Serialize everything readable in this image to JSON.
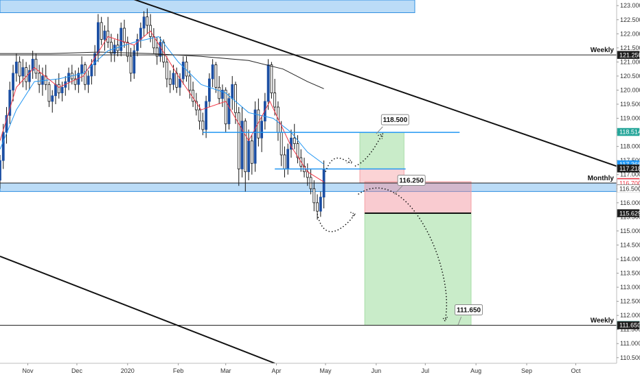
{
  "chart_data": {
    "type": "candlestick",
    "title": "",
    "xlabel": "",
    "ylabel": "",
    "ylim": [
      110.3,
      123.2
    ],
    "grid": false,
    "legend": "none",
    "y_ticks": [
      110.5,
      111.0,
      111.5,
      112.0,
      112.5,
      113.0,
      113.5,
      114.0,
      114.5,
      115.0,
      115.5,
      116.0,
      116.5,
      117.0,
      117.5,
      118.0,
      118.5,
      119.0,
      119.5,
      120.0,
      120.5,
      121.0,
      121.5,
      122.0,
      122.5,
      123.0
    ],
    "y_tick_labels": [
      "110.500",
      "111.000",
      "111.500",
      "112.000",
      "112.500",
      "113.000",
      "113.500",
      "114.000",
      "114.500",
      "115.000",
      "115.500",
      "116.000",
      "116.500",
      "117.000",
      "117.500",
      "118.000",
      "118.500",
      "119.000",
      "119.500",
      "120.000",
      "120.500",
      "121.000",
      "121.500",
      "122.000",
      "122.500",
      "123.000"
    ],
    "x_ticks": [
      {
        "label": "Nov",
        "date": "2019-11-01"
      },
      {
        "label": "Dec",
        "date": "2019-12-01"
      },
      {
        "label": "2020",
        "date": "2020-01-01"
      },
      {
        "label": "Feb",
        "date": "2020-02-01"
      },
      {
        "label": "Mar",
        "date": "2020-03-01"
      },
      {
        "label": "Apr",
        "date": "2020-04-01"
      },
      {
        "label": "May",
        "date": "2020-05-01"
      },
      {
        "label": "Jun",
        "date": "2020-06-01"
      },
      {
        "label": "Jul",
        "date": "2020-07-01"
      },
      {
        "label": "Aug",
        "date": "2020-08-01"
      },
      {
        "label": "Sep",
        "date": "2020-09-01"
      },
      {
        "label": "Oct",
        "date": "2020-10-01"
      }
    ],
    "x_range": [
      "2019-10-15",
      "2020-10-26"
    ],
    "price_tags": [
      {
        "value": 121.25,
        "label": "121.250",
        "bg": "#1e1e1e",
        "fg": "#ffffff"
      },
      {
        "value": 118.514,
        "label": "118.514",
        "bg": "#26a69a",
        "fg": "#ffffff"
      },
      {
        "value": 117.369,
        "label": "117.369",
        "bg": "#2196f3",
        "fg": "#ffffff"
      },
      {
        "value": 117.218,
        "label": "117.218",
        "bg": "#1e1e1e",
        "fg": "#ffffff"
      },
      {
        "value": 116.736,
        "label": "116.736",
        "bg": "#f23645",
        "fg": "#ffffff"
      },
      {
        "value": 116.7,
        "label": "116.700",
        "bg": "#ffffff",
        "fg": "#f23645"
      },
      {
        "value": 116.509,
        "label": "116.509",
        "bg": "#1e1e1e",
        "fg": "#ffffff"
      },
      {
        "value": 116.5,
        "label": "116.500",
        "bg": "#ffffff",
        "fg": "#333333"
      },
      {
        "value": 115.629,
        "label": "115.629",
        "bg": "#1e1e1e",
        "fg": "#ffffff"
      },
      {
        "value": 111.659,
        "label": "111.659",
        "bg": "#26a69a",
        "fg": "#ffffff"
      },
      {
        "value": 111.65,
        "label": "111.650",
        "bg": "#1e1e1e",
        "fg": "#ffffff"
      }
    ],
    "levels": [
      {
        "value": 121.25,
        "label": "Weekly"
      },
      {
        "value": 116.7,
        "label": "Monthly"
      },
      {
        "value": 111.65,
        "label": "Weekly"
      }
    ],
    "callouts": [
      {
        "value": "118.500",
        "date": "2020-06-05",
        "price": 118.95
      },
      {
        "value": "116.250",
        "date": "2020-06-15",
        "price": 116.8
      },
      {
        "value": "111.650",
        "date": "2020-07-20",
        "price": 112.2
      }
    ],
    "candles": [
      {
        "date": "2019-10-15",
        "o": 116.8,
        "h": 117.7,
        "l": 116.5,
        "c": 117.5
      },
      {
        "date": "2019-10-17",
        "o": 117.5,
        "h": 118.8,
        "l": 117.2,
        "c": 118.5
      },
      {
        "date": "2019-10-19",
        "o": 118.5,
        "h": 119.4,
        "l": 118.1,
        "c": 119.1
      },
      {
        "date": "2019-10-21",
        "o": 119.1,
        "h": 120.3,
        "l": 118.8,
        "c": 120.0
      },
      {
        "date": "2019-10-23",
        "o": 120.0,
        "h": 120.9,
        "l": 119.6,
        "c": 120.6
      },
      {
        "date": "2019-10-25",
        "o": 120.6,
        "h": 121.3,
        "l": 120.3,
        "c": 121.0
      },
      {
        "date": "2019-10-27",
        "o": 121.0,
        "h": 121.2,
        "l": 120.2,
        "c": 120.5
      },
      {
        "date": "2019-10-29",
        "o": 120.5,
        "h": 121.1,
        "l": 120.1,
        "c": 120.8
      },
      {
        "date": "2019-10-31",
        "o": 120.8,
        "h": 121.0,
        "l": 120.0,
        "c": 120.3
      },
      {
        "date": "2019-11-02",
        "o": 120.3,
        "h": 120.9,
        "l": 120.0,
        "c": 120.7
      },
      {
        "date": "2019-11-04",
        "o": 120.7,
        "h": 121.4,
        "l": 120.4,
        "c": 121.1
      },
      {
        "date": "2019-11-06",
        "o": 121.1,
        "h": 121.3,
        "l": 120.4,
        "c": 120.6
      },
      {
        "date": "2019-11-08",
        "o": 120.6,
        "h": 120.9,
        "l": 119.9,
        "c": 120.2
      },
      {
        "date": "2019-11-10",
        "o": 120.2,
        "h": 120.8,
        "l": 119.8,
        "c": 120.5
      },
      {
        "date": "2019-11-12",
        "o": 120.5,
        "h": 120.9,
        "l": 120.0,
        "c": 120.2
      },
      {
        "date": "2019-11-14",
        "o": 120.2,
        "h": 120.3,
        "l": 119.4,
        "c": 119.6
      },
      {
        "date": "2019-11-16",
        "o": 119.6,
        "h": 120.0,
        "l": 119.2,
        "c": 119.8
      },
      {
        "date": "2019-11-18",
        "o": 119.8,
        "h": 120.4,
        "l": 119.5,
        "c": 120.2
      },
      {
        "date": "2019-11-20",
        "o": 120.2,
        "h": 120.6,
        "l": 119.7,
        "c": 119.9
      },
      {
        "date": "2019-11-22",
        "o": 119.9,
        "h": 120.3,
        "l": 119.6,
        "c": 120.1
      },
      {
        "date": "2019-11-24",
        "o": 120.1,
        "h": 120.5,
        "l": 119.8,
        "c": 120.3
      },
      {
        "date": "2019-11-26",
        "o": 120.3,
        "h": 120.8,
        "l": 120.0,
        "c": 120.6
      },
      {
        "date": "2019-11-28",
        "o": 120.6,
        "h": 120.9,
        "l": 120.2,
        "c": 120.4
      },
      {
        "date": "2019-11-30",
        "o": 120.4,
        "h": 120.7,
        "l": 120.0,
        "c": 120.2
      },
      {
        "date": "2019-12-02",
        "o": 120.2,
        "h": 120.8,
        "l": 119.9,
        "c": 120.6
      },
      {
        "date": "2019-12-04",
        "o": 120.6,
        "h": 121.2,
        "l": 120.3,
        "c": 120.9
      },
      {
        "date": "2019-12-06",
        "o": 120.9,
        "h": 121.0,
        "l": 120.0,
        "c": 120.2
      },
      {
        "date": "2019-12-08",
        "o": 120.2,
        "h": 120.7,
        "l": 119.9,
        "c": 120.5
      },
      {
        "date": "2019-12-10",
        "o": 120.5,
        "h": 121.1,
        "l": 120.2,
        "c": 120.9
      },
      {
        "date": "2019-12-12",
        "o": 120.9,
        "h": 121.6,
        "l": 120.5,
        "c": 121.3
      },
      {
        "date": "2019-12-14",
        "o": 121.3,
        "h": 122.7,
        "l": 121.0,
        "c": 122.4
      },
      {
        "date": "2019-12-16",
        "o": 122.4,
        "h": 122.6,
        "l": 121.6,
        "c": 121.8
      },
      {
        "date": "2019-12-18",
        "o": 121.8,
        "h": 122.3,
        "l": 121.4,
        "c": 122.1
      },
      {
        "date": "2019-12-20",
        "o": 122.1,
        "h": 122.6,
        "l": 121.5,
        "c": 121.7
      },
      {
        "date": "2019-12-22",
        "o": 121.7,
        "h": 122.0,
        "l": 121.0,
        "c": 121.3
      },
      {
        "date": "2019-12-24",
        "o": 121.3,
        "h": 121.8,
        "l": 121.0,
        "c": 121.6
      },
      {
        "date": "2019-12-26",
        "o": 121.6,
        "h": 122.0,
        "l": 121.2,
        "c": 121.4
      },
      {
        "date": "2019-12-28",
        "o": 121.4,
        "h": 122.4,
        "l": 121.2,
        "c": 122.2
      },
      {
        "date": "2019-12-30",
        "o": 122.2,
        "h": 122.5,
        "l": 121.5,
        "c": 121.7
      },
      {
        "date": "2020-01-01",
        "o": 121.7,
        "h": 121.9,
        "l": 121.0,
        "c": 121.2
      },
      {
        "date": "2020-01-03",
        "o": 121.2,
        "h": 121.5,
        "l": 120.3,
        "c": 120.6
      },
      {
        "date": "2020-01-05",
        "o": 120.6,
        "h": 121.6,
        "l": 120.4,
        "c": 121.4
      },
      {
        "date": "2020-01-07",
        "o": 121.4,
        "h": 122.0,
        "l": 121.2,
        "c": 121.8
      },
      {
        "date": "2020-01-09",
        "o": 121.8,
        "h": 122.4,
        "l": 121.5,
        "c": 122.2
      },
      {
        "date": "2020-01-11",
        "o": 122.2,
        "h": 122.8,
        "l": 121.9,
        "c": 122.6
      },
      {
        "date": "2020-01-13",
        "o": 122.6,
        "h": 122.9,
        "l": 122.0,
        "c": 122.3
      },
      {
        "date": "2020-01-15",
        "o": 122.3,
        "h": 122.7,
        "l": 121.7,
        "c": 121.9
      },
      {
        "date": "2020-01-17",
        "o": 121.9,
        "h": 122.2,
        "l": 121.3,
        "c": 121.5
      },
      {
        "date": "2020-01-19",
        "o": 121.5,
        "h": 121.9,
        "l": 120.9,
        "c": 121.2
      },
      {
        "date": "2020-01-21",
        "o": 121.2,
        "h": 121.9,
        "l": 121.0,
        "c": 121.7
      },
      {
        "date": "2020-01-23",
        "o": 121.7,
        "h": 121.8,
        "l": 120.8,
        "c": 121.0
      },
      {
        "date": "2020-01-25",
        "o": 121.0,
        "h": 121.2,
        "l": 120.1,
        "c": 120.4
      },
      {
        "date": "2020-01-27",
        "o": 120.4,
        "h": 120.7,
        "l": 119.9,
        "c": 120.2
      },
      {
        "date": "2020-01-29",
        "o": 120.2,
        "h": 120.9,
        "l": 120.0,
        "c": 120.6
      },
      {
        "date": "2020-01-31",
        "o": 120.6,
        "h": 120.8,
        "l": 119.9,
        "c": 120.1
      },
      {
        "date": "2020-02-02",
        "o": 120.1,
        "h": 120.6,
        "l": 119.8,
        "c": 120.4
      },
      {
        "date": "2020-02-04",
        "o": 120.4,
        "h": 121.2,
        "l": 120.2,
        "c": 121.0
      },
      {
        "date": "2020-02-06",
        "o": 121.0,
        "h": 121.2,
        "l": 120.3,
        "c": 120.5
      },
      {
        "date": "2020-02-08",
        "o": 120.5,
        "h": 120.7,
        "l": 119.7,
        "c": 120.0
      },
      {
        "date": "2020-02-10",
        "o": 120.0,
        "h": 120.3,
        "l": 119.4,
        "c": 119.6
      },
      {
        "date": "2020-02-12",
        "o": 119.6,
        "h": 119.9,
        "l": 119.1,
        "c": 119.3
      },
      {
        "date": "2020-02-14",
        "o": 119.3,
        "h": 119.5,
        "l": 118.6,
        "c": 118.9
      },
      {
        "date": "2020-02-16",
        "o": 118.9,
        "h": 119.2,
        "l": 118.4,
        "c": 118.6
      },
      {
        "date": "2020-02-18",
        "o": 118.6,
        "h": 119.8,
        "l": 118.3,
        "c": 119.6
      },
      {
        "date": "2020-02-20",
        "o": 119.6,
        "h": 120.6,
        "l": 119.4,
        "c": 120.4
      },
      {
        "date": "2020-02-22",
        "o": 120.4,
        "h": 121.1,
        "l": 120.1,
        "c": 120.9
      },
      {
        "date": "2020-02-24",
        "o": 120.9,
        "h": 121.0,
        "l": 119.9,
        "c": 120.1
      },
      {
        "date": "2020-02-26",
        "o": 120.1,
        "h": 120.5,
        "l": 119.5,
        "c": 119.7
      },
      {
        "date": "2020-02-28",
        "o": 119.7,
        "h": 120.2,
        "l": 119.4,
        "c": 120.0
      },
      {
        "date": "2020-03-01",
        "o": 120.0,
        "h": 120.1,
        "l": 118.5,
        "c": 118.8
      },
      {
        "date": "2020-03-03",
        "o": 118.8,
        "h": 119.9,
        "l": 118.6,
        "c": 119.7
      },
      {
        "date": "2020-03-05",
        "o": 119.7,
        "h": 120.5,
        "l": 119.3,
        "c": 120.2
      },
      {
        "date": "2020-03-07",
        "o": 120.2,
        "h": 120.3,
        "l": 118.8,
        "c": 119.2
      },
      {
        "date": "2020-03-09",
        "o": 119.2,
        "h": 119.4,
        "l": 116.6,
        "c": 117.2
      },
      {
        "date": "2020-03-11",
        "o": 117.2,
        "h": 119.4,
        "l": 116.9,
        "c": 118.9
      },
      {
        "date": "2020-03-13",
        "o": 118.9,
        "h": 119.0,
        "l": 116.4,
        "c": 117.1
      },
      {
        "date": "2020-03-15",
        "o": 117.1,
        "h": 118.6,
        "l": 116.8,
        "c": 118.2
      },
      {
        "date": "2020-03-17",
        "o": 118.2,
        "h": 118.4,
        "l": 117.0,
        "c": 117.4
      },
      {
        "date": "2020-03-19",
        "o": 117.4,
        "h": 119.6,
        "l": 117.1,
        "c": 119.3
      },
      {
        "date": "2020-03-21",
        "o": 119.3,
        "h": 119.7,
        "l": 118.0,
        "c": 118.3
      },
      {
        "date": "2020-03-23",
        "o": 118.3,
        "h": 119.1,
        "l": 117.8,
        "c": 118.9
      },
      {
        "date": "2020-03-25",
        "o": 118.9,
        "h": 119.9,
        "l": 118.6,
        "c": 119.6
      },
      {
        "date": "2020-03-27",
        "o": 119.6,
        "h": 121.1,
        "l": 119.3,
        "c": 120.9
      },
      {
        "date": "2020-03-29",
        "o": 120.9,
        "h": 121.0,
        "l": 119.7,
        "c": 119.9
      },
      {
        "date": "2020-03-31",
        "o": 119.9,
        "h": 120.4,
        "l": 119.1,
        "c": 119.4
      },
      {
        "date": "2020-04-02",
        "o": 119.4,
        "h": 119.6,
        "l": 118.2,
        "c": 118.5
      },
      {
        "date": "2020-04-04",
        "o": 118.5,
        "h": 118.9,
        "l": 117.3,
        "c": 117.7
      },
      {
        "date": "2020-04-06",
        "o": 117.7,
        "h": 118.0,
        "l": 116.9,
        "c": 117.2
      },
      {
        "date": "2020-04-08",
        "o": 117.2,
        "h": 118.1,
        "l": 117.0,
        "c": 117.9
      },
      {
        "date": "2020-04-10",
        "o": 117.9,
        "h": 118.6,
        "l": 117.6,
        "c": 118.3
      },
      {
        "date": "2020-04-12",
        "o": 118.3,
        "h": 118.8,
        "l": 117.9,
        "c": 118.1
      },
      {
        "date": "2020-04-14",
        "o": 118.1,
        "h": 118.4,
        "l": 117.4,
        "c": 117.6
      },
      {
        "date": "2020-04-16",
        "o": 117.6,
        "h": 117.9,
        "l": 117.1,
        "c": 117.3
      },
      {
        "date": "2020-04-18",
        "o": 117.3,
        "h": 117.6,
        "l": 116.9,
        "c": 117.1
      },
      {
        "date": "2020-04-20",
        "o": 117.1,
        "h": 117.4,
        "l": 116.6,
        "c": 116.9
      },
      {
        "date": "2020-04-22",
        "o": 116.9,
        "h": 117.2,
        "l": 116.3,
        "c": 116.5
      },
      {
        "date": "2020-04-24",
        "o": 116.5,
        "h": 116.8,
        "l": 115.7,
        "c": 116.0
      },
      {
        "date": "2020-04-26",
        "o": 116.0,
        "h": 116.3,
        "l": 115.4,
        "c": 115.7
      },
      {
        "date": "2020-04-28",
        "o": 115.7,
        "h": 116.4,
        "l": 115.5,
        "c": 116.2
      },
      {
        "date": "2020-04-30",
        "o": 116.2,
        "h": 117.5,
        "l": 115.8,
        "c": 117.2
      }
    ],
    "overlays": [
      {
        "name": "",
        "color": "#222222",
        "points": [
          [
            "2019-10-15",
            121.3
          ],
          [
            "2019-11-15",
            121.3
          ],
          [
            "2019-12-15",
            121.35
          ],
          [
            "2020-01-15",
            121.3
          ],
          [
            "2020-02-15",
            121.2
          ],
          [
            "2020-03-15",
            121.05
          ],
          [
            "2020-04-05",
            120.75
          ],
          [
            "2020-04-20",
            120.3
          ],
          [
            "2020-04-30",
            120.05
          ]
        ]
      },
      {
        "name": "",
        "color": "#2196f3",
        "points": [
          [
            "2019-10-15",
            117.9
          ],
          [
            "2019-10-25",
            119.3
          ],
          [
            "2019-11-05",
            120.3
          ],
          [
            "2019-11-20",
            120.4
          ],
          [
            "2019-12-05",
            120.6
          ],
          [
            "2019-12-20",
            121.4
          ],
          [
            "2020-01-05",
            121.7
          ],
          [
            "2020-01-20",
            121.9
          ],
          [
            "2020-02-01",
            121.0
          ],
          [
            "2020-02-15",
            120.2
          ],
          [
            "2020-03-01",
            119.9
          ],
          [
            "2020-03-15",
            119.2
          ],
          [
            "2020-03-30",
            119.0
          ],
          [
            "2020-04-10",
            118.5
          ],
          [
            "2020-04-20",
            117.8
          ],
          [
            "2020-04-30",
            117.37
          ]
        ]
      },
      {
        "name": "",
        "color": "#f23645",
        "points": [
          [
            "2019-10-15",
            118.2
          ],
          [
            "2019-10-25",
            120.1
          ],
          [
            "2019-11-05",
            120.8
          ],
          [
            "2019-11-20",
            120.1
          ],
          [
            "2019-12-05",
            120.5
          ],
          [
            "2019-12-20",
            121.9
          ],
          [
            "2020-01-05",
            121.6
          ],
          [
            "2020-01-15",
            122.1
          ],
          [
            "2020-02-01",
            120.5
          ],
          [
            "2020-02-15",
            119.3
          ],
          [
            "2020-03-01",
            119.6
          ],
          [
            "2020-03-15",
            118.2
          ],
          [
            "2020-03-28",
            119.6
          ],
          [
            "2020-04-10",
            118.0
          ],
          [
            "2020-04-20",
            117.1
          ],
          [
            "2020-04-30",
            116.74
          ]
        ]
      }
    ]
  }
}
